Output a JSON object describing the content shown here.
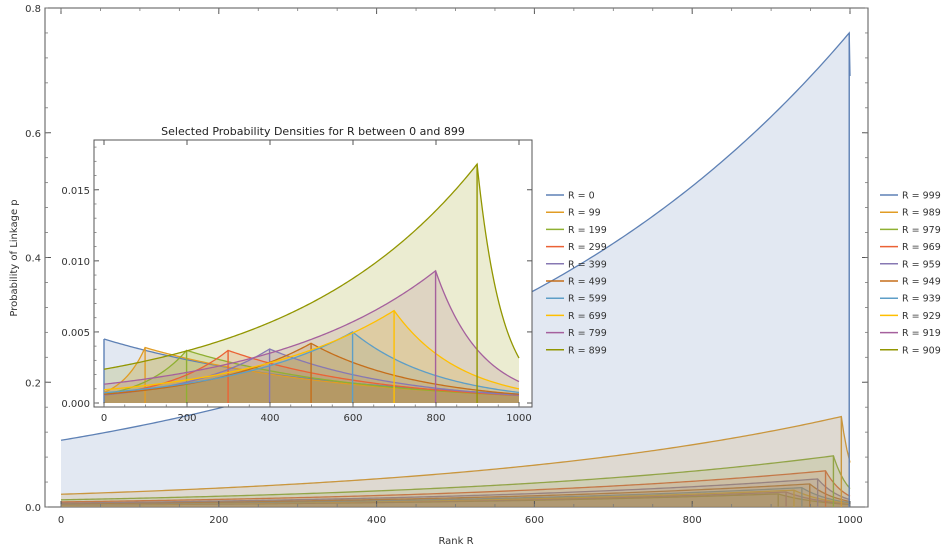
{
  "chart_data": [
    {
      "type": "line",
      "title": "",
      "xlabel": "Rank R",
      "ylabel": "Probability of Linkage p",
      "xlim": [
        0,
        1000
      ],
      "ylim": [
        0,
        0.8
      ],
      "x_ticks": [
        "0",
        "200",
        "400",
        "600",
        "800",
        "1000"
      ],
      "y_ticks": [
        "0.0",
        "0.2",
        "0.4",
        "0.6",
        "0.8"
      ],
      "legend_position": "right",
      "filled": true,
      "series": [
        {
          "name": "R = 999",
          "peak_x": 999,
          "peak_y": 0.76,
          "color": "#5E81B5"
        },
        {
          "name": "R = 989",
          "peak_x": 989,
          "peak_y": 0.145,
          "color": "#E19C24"
        },
        {
          "name": "R = 979",
          "peak_x": 979,
          "peak_y": 0.082,
          "color": "#8FB032"
        },
        {
          "name": "R = 969",
          "peak_x": 969,
          "peak_y": 0.058,
          "color": "#EB6235"
        },
        {
          "name": "R = 959",
          "peak_x": 959,
          "peak_y": 0.045,
          "color": "#8778B3"
        },
        {
          "name": "R = 949",
          "peak_x": 949,
          "peak_y": 0.037,
          "color": "#C56E1A"
        },
        {
          "name": "R = 939",
          "peak_x": 939,
          "peak_y": 0.031,
          "color": "#5D9EC7"
        },
        {
          "name": "R = 929",
          "peak_x": 929,
          "peak_y": 0.027,
          "color": "#FFBF00"
        },
        {
          "name": "R = 919",
          "peak_x": 919,
          "peak_y": 0.024,
          "color": "#A5609D"
        },
        {
          "name": "R = 909",
          "peak_x": 909,
          "peak_y": 0.021,
          "color": "#929600"
        }
      ]
    },
    {
      "type": "line",
      "title": "Selected Probability Densities for R between 0 and 899",
      "xlabel": "",
      "ylabel": "",
      "xlim": [
        0,
        1000
      ],
      "ylim": [
        0,
        0.0185
      ],
      "x_ticks": [
        "0",
        "200",
        "400",
        "600",
        "800",
        "1000"
      ],
      "y_ticks": [
        "0.000",
        "0.005",
        "0.010",
        "0.015"
      ],
      "legend_position": "right",
      "filled": true,
      "series": [
        {
          "name": "R = 0",
          "peak_x": 0,
          "peak_y": 0.0045,
          "color": "#5E81B5"
        },
        {
          "name": "R = 99",
          "peak_x": 99,
          "peak_y": 0.0039,
          "color": "#E19C24"
        },
        {
          "name": "R = 199",
          "peak_x": 199,
          "peak_y": 0.0037,
          "color": "#8FB032"
        },
        {
          "name": "R = 299",
          "peak_x": 299,
          "peak_y": 0.0037,
          "color": "#EB6235"
        },
        {
          "name": "R = 399",
          "peak_x": 399,
          "peak_y": 0.0038,
          "color": "#8778B3"
        },
        {
          "name": "R = 499",
          "peak_x": 499,
          "peak_y": 0.0042,
          "color": "#C56E1A"
        },
        {
          "name": "R = 599",
          "peak_x": 599,
          "peak_y": 0.005,
          "color": "#5D9EC7"
        },
        {
          "name": "R = 699",
          "peak_x": 699,
          "peak_y": 0.0065,
          "color": "#FFBF00"
        },
        {
          "name": "R = 799",
          "peak_x": 799,
          "peak_y": 0.0093,
          "color": "#A5609D"
        },
        {
          "name": "R = 899",
          "peak_x": 899,
          "peak_y": 0.0168,
          "color": "#929600"
        }
      ]
    }
  ]
}
